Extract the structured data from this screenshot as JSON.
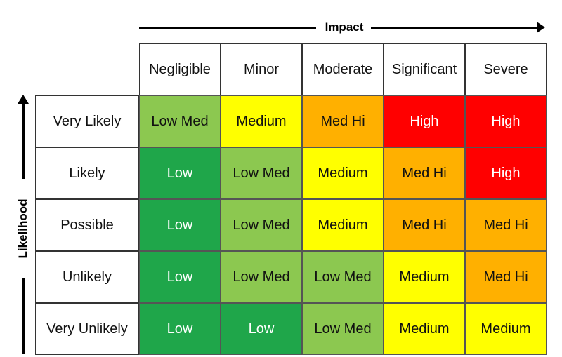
{
  "axes": {
    "impact_label": "Impact",
    "likelihood_label": "Likelihood"
  },
  "impact_levels": [
    "Negligible",
    "Minor",
    "Moderate",
    "Significant",
    "Severe"
  ],
  "likelihood_levels": [
    "Very Likely",
    "Likely",
    "Possible",
    "Unlikely",
    "Very Unlikely"
  ],
  "matrix": [
    [
      "Low Med",
      "Medium",
      "Med Hi",
      "High",
      "High"
    ],
    [
      "Low",
      "Low Med",
      "Medium",
      "Med Hi",
      "High"
    ],
    [
      "Low",
      "Low Med",
      "Medium",
      "Med Hi",
      "Med Hi"
    ],
    [
      "Low",
      "Low Med",
      "Low Med",
      "Medium",
      "Med Hi"
    ],
    [
      "Low",
      "Low",
      "Low Med",
      "Medium",
      "Medium"
    ]
  ],
  "risk_colors": {
    "Low": "#1fa64a",
    "Low Med": "#8cc850",
    "Medium": "#ffff00",
    "Med Hi": "#ffb000",
    "High": "#ff0000"
  },
  "light_text_levels": [
    "Low",
    "High"
  ]
}
